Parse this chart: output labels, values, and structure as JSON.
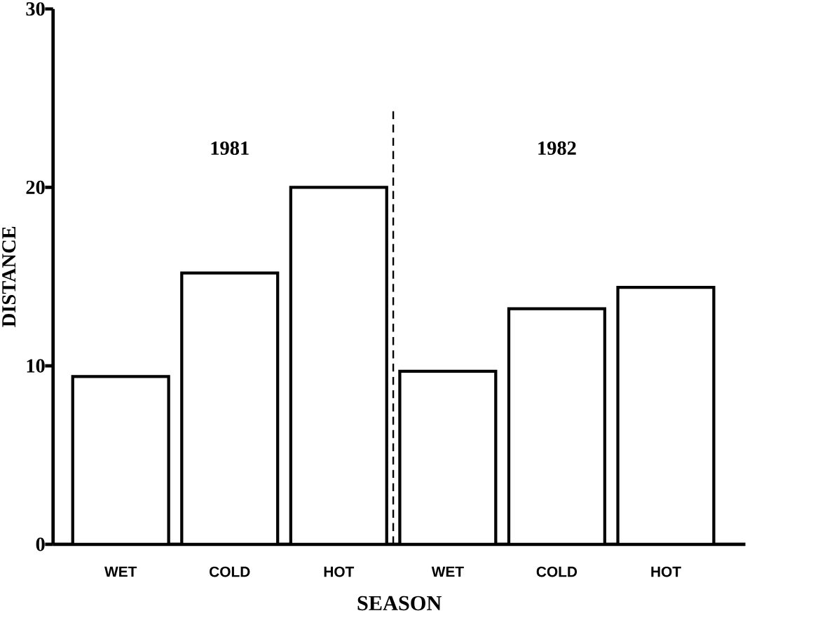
{
  "chart_data": {
    "type": "bar",
    "xlabel": "SEASON",
    "ylabel": "DISTANCE",
    "categories": [
      "WET",
      "COLD",
      "HOT",
      "WET",
      "COLD",
      "HOT"
    ],
    "values": [
      9.4,
      15.2,
      20.0,
      9.7,
      13.2,
      14.4
    ],
    "color": "#ffffff",
    "ylim": [
      0,
      30
    ],
    "yticks": [
      0,
      10,
      20,
      30
    ],
    "annotations": [
      "1981",
      "1982"
    ]
  }
}
